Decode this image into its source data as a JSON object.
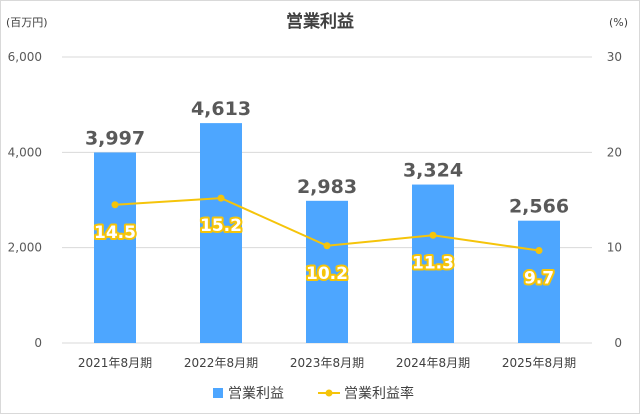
{
  "chart_data": {
    "type": "bar",
    "title": "営業利益",
    "y_unit_left": "(百万円)",
    "y_unit_right": "(%)",
    "categories": [
      "2021年8月期",
      "2022年8月期",
      "2023年8月期",
      "2024年8月期",
      "2025年8月期"
    ],
    "series": [
      {
        "name": "営業利益",
        "type": "bar",
        "axis": "left",
        "values": [
          3997,
          4613,
          2983,
          3324,
          2566
        ],
        "labels": [
          "3,997",
          "4,613",
          "2,983",
          "3,324",
          "2,566"
        ],
        "color": "#4da6ff"
      },
      {
        "name": "営業利益率",
        "type": "line",
        "axis": "right",
        "values": [
          14.5,
          15.2,
          10.2,
          11.3,
          9.7
        ],
        "labels": [
          "14.5",
          "15.2",
          "10.2",
          "11.3",
          "9.7"
        ],
        "color": "#f5c40a"
      }
    ],
    "y_left": {
      "range": [
        0,
        6000
      ],
      "ticks": [
        "0",
        "2,000",
        "4,000",
        "6,000"
      ],
      "tick_values": [
        0,
        2000,
        4000,
        6000
      ]
    },
    "y_right": {
      "range": [
        0,
        30
      ],
      "ticks": [
        "0",
        "10",
        "20",
        "30"
      ],
      "tick_values": [
        0,
        10,
        20,
        30
      ]
    },
    "grid": true,
    "legend_position": "bottom"
  }
}
